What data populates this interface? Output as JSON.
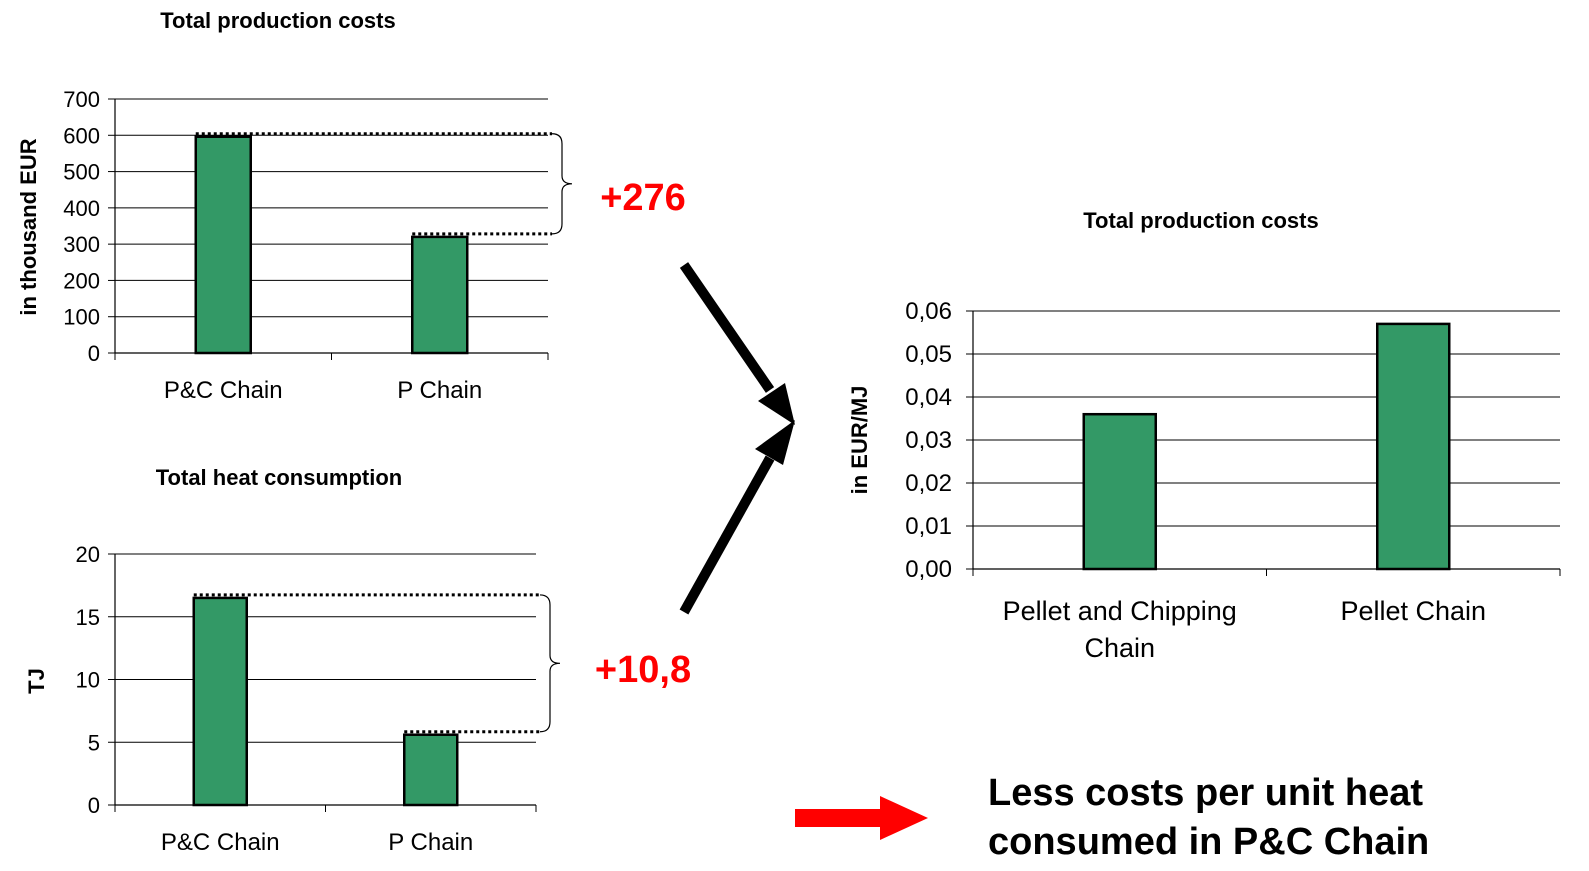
{
  "chart_data": [
    {
      "type": "bar",
      "title": "Total production costs",
      "ylabel": "in thousand EUR",
      "categories": [
        "P&C Chain",
        "P Chain"
      ],
      "values": [
        596,
        320
      ],
      "ylim": [
        0,
        700
      ],
      "yticks": [
        "0",
        "100",
        "200",
        "300",
        "400",
        "500",
        "600",
        "700"
      ],
      "grid": true,
      "bar_color": "#339966",
      "annotation": "+276"
    },
    {
      "type": "bar",
      "title": "Total heat consumption",
      "ylabel": "TJ",
      "categories": [
        "P&C Chain",
        "P Chain"
      ],
      "values": [
        16.5,
        5.6
      ],
      "ylim": [
        0,
        20
      ],
      "yticks": [
        "0",
        "5",
        "10",
        "15",
        "20"
      ],
      "grid": true,
      "bar_color": "#339966",
      "annotation": "+10,8"
    },
    {
      "type": "bar",
      "title": "Total production costs",
      "ylabel": "in EUR/MJ",
      "categories": [
        "Pellet and Chipping Chain",
        "Pellet Chain"
      ],
      "category_lines": [
        [
          "Pellet and Chipping",
          "Chain"
        ],
        [
          "Pellet Chain"
        ]
      ],
      "values": [
        0.036,
        0.057
      ],
      "ylim": [
        0,
        0.06
      ],
      "yticks": [
        "0,00",
        "0,01",
        "0,02",
        "0,03",
        "0,04",
        "0,05",
        "0,06"
      ],
      "grid": true,
      "bar_color": "#339966"
    }
  ],
  "conclusion": {
    "line1": "Less costs per unit heat",
    "line2": "consumed in P&C Chain",
    "arrow_color": "#ff0000"
  }
}
